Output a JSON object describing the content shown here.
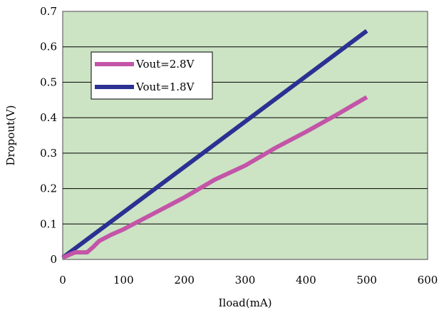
{
  "chart_data": {
    "type": "line",
    "xlabel": "Iload(mA)",
    "ylabel": "Dropout(V)",
    "xlim": [
      0,
      600
    ],
    "ylim": [
      0,
      0.7
    ],
    "xticks": [
      0,
      100,
      200,
      300,
      400,
      500,
      600
    ],
    "xtick_labels": [
      "0",
      "100",
      "200",
      "300",
      "400",
      "500",
      "600"
    ],
    "yticks": [
      0,
      0.1,
      0.2,
      0.3,
      0.4,
      0.5,
      0.6,
      0.7
    ],
    "ytick_labels": [
      "0",
      "0.1",
      "0.2",
      "0.3",
      "0.4",
      "0.5",
      "0.6",
      "0.7"
    ],
    "grid": "horizontal",
    "legend_position": "top-left",
    "plot_background": "#cce4c4",
    "series": [
      {
        "name": "Vout=2.8V",
        "color": "#c355a8",
        "x": [
          0,
          20,
          30,
          40,
          50,
          60,
          80,
          100,
          150,
          200,
          250,
          300,
          350,
          400,
          450,
          500
        ],
        "y": [
          0.005,
          0.02,
          0.02,
          0.02,
          0.035,
          0.052,
          0.07,
          0.085,
          0.13,
          0.175,
          0.225,
          0.265,
          0.315,
          0.36,
          0.408,
          0.458
        ]
      },
      {
        "name": "Vout=1.8V",
        "color": "#2b3192",
        "x": [
          0,
          500
        ],
        "y": [
          0.005,
          0.645
        ]
      }
    ]
  }
}
